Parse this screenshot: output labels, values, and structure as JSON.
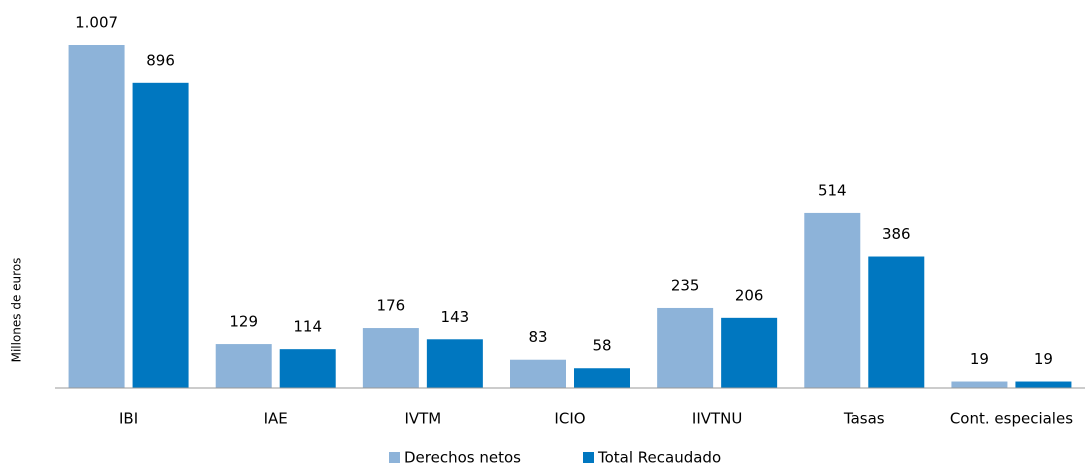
{
  "chart_data": {
    "type": "bar",
    "y_label": "Millones de euros",
    "categories": [
      "IBI",
      "IAE",
      "IVTM",
      "ICIO",
      "IIVTNU",
      "Tasas",
      "Cont. especiales"
    ],
    "series": [
      {
        "name": "Derechos netos",
        "color": "#8db3d9",
        "values": [
          1007,
          129,
          176,
          83,
          235,
          514,
          19
        ],
        "value_labels": [
          "1.007",
          "129",
          "176",
          "83",
          "235",
          "514",
          "19"
        ]
      },
      {
        "name": "Total Recaudado",
        "color": "#0077c0",
        "values": [
          896,
          114,
          143,
          58,
          206,
          386,
          19
        ],
        "value_labels": [
          "896",
          "114",
          "143",
          "58",
          "206",
          "386",
          "19"
        ]
      }
    ],
    "ylim": [
      0,
      1007
    ]
  }
}
